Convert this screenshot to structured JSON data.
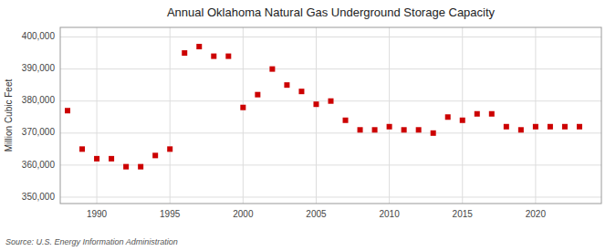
{
  "chart_data": {
    "type": "scatter",
    "title": "Annual Oklahoma Natural Gas Underground Storage Capacity",
    "ylabel": "Million Cubic Feet",
    "annotations": [
      "Source: U.S. Energy Information Administration"
    ],
    "x": [
      1988,
      1989,
      1990,
      1991,
      1992,
      1993,
      1994,
      1995,
      1996,
      1997,
      1998,
      1999,
      2000,
      2001,
      2002,
      2003,
      2004,
      2005,
      2006,
      2007,
      2008,
      2009,
      2010,
      2011,
      2012,
      2013,
      2014,
      2015,
      2016,
      2017,
      2018,
      2019,
      2020,
      2021,
      2022,
      2023
    ],
    "values": [
      377000,
      365000,
      362000,
      362000,
      359500,
      359500,
      363000,
      365000,
      395000,
      397000,
      394000,
      394000,
      378000,
      382000,
      390000,
      385000,
      383000,
      379000,
      380000,
      374000,
      371000,
      371000,
      372000,
      371000,
      371000,
      370000,
      375000,
      374000,
      376000,
      376000,
      372000,
      371000,
      372000,
      372000,
      372000,
      372000
    ],
    "color": "#cc0000",
    "marker": "square",
    "xlim": [
      1987.5,
      2024.5
    ],
    "ylim": [
      348000,
      403000
    ],
    "xticks": [
      1990,
      1995,
      2000,
      2005,
      2010,
      2015,
      2020
    ],
    "yticks": [
      {
        "value": 350000,
        "label": "350,000"
      },
      {
        "value": 360000,
        "label": "360,000"
      },
      {
        "value": 370000,
        "label": "370,000"
      },
      {
        "value": 380000,
        "label": "380,000"
      },
      {
        "value": 390000,
        "label": "390,000"
      },
      {
        "value": 400000,
        "label": "400,000"
      }
    ],
    "grid": true
  }
}
